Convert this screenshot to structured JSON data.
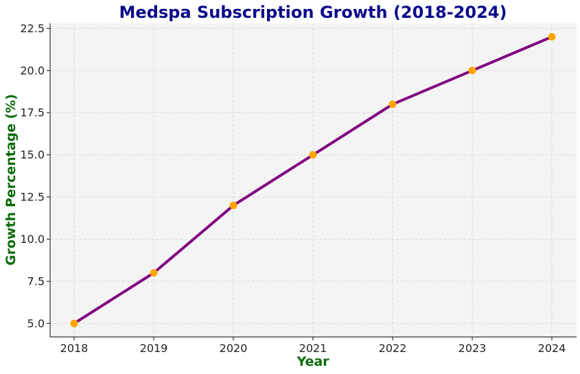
{
  "chart_data": {
    "type": "line",
    "title": "Medspa Subscription Growth (2018-2024)",
    "xlabel": "Year",
    "ylabel": "Growth Percentage (%)",
    "x": [
      "2018",
      "2019",
      "2020",
      "2021",
      "2022",
      "2023",
      "2024"
    ],
    "series": [
      {
        "values": [
          5,
          8,
          12,
          15,
          18,
          20,
          22
        ],
        "line_color": "#800080",
        "marker_color": "#ffa500"
      }
    ],
    "y_ticks": [
      "5.0",
      "7.5",
      "10.0",
      "12.5",
      "15.0",
      "17.5",
      "20.0",
      "22.5"
    ],
    "ylim": [
      4.2,
      22.8
    ],
    "grid": true,
    "colors": {
      "plot_background": "#f4f4f4",
      "title": "#0b0b8a",
      "axis_label": "#0a6b0a"
    }
  }
}
